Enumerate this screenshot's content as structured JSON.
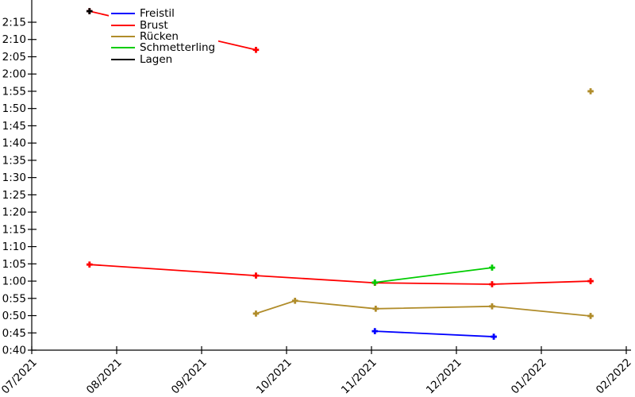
{
  "background_color": "#ffffff",
  "chart_data": {
    "type": "line",
    "title": "",
    "x_axis": {
      "unit": "date",
      "tick_labels": [
        "07/2021",
        "08/2021",
        "09/2021",
        "10/2021",
        "11/2021",
        "12/2021",
        "01/2022",
        "02/2022"
      ]
    },
    "y_axis": {
      "unit": "time (m:ss)",
      "min_seconds": 40,
      "max_seconds": 135,
      "tick_step_seconds": 5,
      "tick_labels": [
        "0:40",
        "0:45",
        "0:50",
        "0:55",
        "1:00",
        "1:05",
        "1:10",
        "1:15",
        "1:20",
        "1:25",
        "1:30",
        "1:35",
        "1:40",
        "1:45",
        "1:50",
        "1:55",
        "2:00",
        "2:05",
        "2:10",
        "2:15"
      ]
    },
    "legend": {
      "position": "top-left",
      "entries": [
        "Freistil",
        "Brust",
        "Rücken",
        "Schmetterling",
        "Lagen"
      ]
    },
    "series": [
      {
        "name": "Freistil",
        "color": "#0000ff",
        "marker": "plus",
        "segments": [
          [
            {
              "x_months_after_jul2021": 4.04,
              "seconds": 45.5,
              "time": "0:45"
            },
            {
              "x_months_after_jul2021": 5.44,
              "seconds": 43.9,
              "time": "0:44"
            }
          ]
        ]
      },
      {
        "name": "Brust",
        "color": "#ff0000",
        "marker": "plus",
        "segments": [
          [
            {
              "x_months_after_jul2021": 0.68,
              "seconds": 138.2,
              "time": "2:18"
            },
            {
              "x_months_after_jul2021": 2.64,
              "seconds": 127.0,
              "time": "2:07"
            }
          ],
          [
            {
              "x_months_after_jul2021": 0.68,
              "seconds": 64.8,
              "time": "1:05"
            },
            {
              "x_months_after_jul2021": 2.64,
              "seconds": 61.6,
              "time": "1:02"
            },
            {
              "x_months_after_jul2021": 4.04,
              "seconds": 59.5,
              "time": "1:00"
            },
            {
              "x_months_after_jul2021": 5.42,
              "seconds": 59.1,
              "time": "0:59"
            },
            {
              "x_months_after_jul2021": 6.58,
              "seconds": 60.0,
              "time": "1:00"
            }
          ]
        ]
      },
      {
        "name": "Rücken",
        "color": "#b08c2a",
        "marker": "plus",
        "segments": [
          [
            {
              "x_months_after_jul2021": 2.64,
              "seconds": 50.6,
              "time": "0:51"
            },
            {
              "x_months_after_jul2021": 3.1,
              "seconds": 54.3,
              "time": "0:54"
            },
            {
              "x_months_after_jul2021": 4.05,
              "seconds": 52.0,
              "time": "0:52"
            },
            {
              "x_months_after_jul2021": 5.42,
              "seconds": 52.7,
              "time": "0:53"
            },
            {
              "x_months_after_jul2021": 6.58,
              "seconds": 49.9,
              "time": "0:50"
            }
          ],
          [
            {
              "x_months_after_jul2021": 6.58,
              "seconds": 115.0,
              "time": "1:55"
            }
          ]
        ]
      },
      {
        "name": "Schmetterling",
        "color": "#00cc00",
        "marker": "plus",
        "segments": [
          [
            {
              "x_months_after_jul2021": 4.04,
              "seconds": 59.6,
              "time": "1:00"
            },
            {
              "x_months_after_jul2021": 5.42,
              "seconds": 63.9,
              "time": "1:04"
            }
          ]
        ]
      },
      {
        "name": "Lagen",
        "color": "#000000",
        "marker": "plus",
        "segments": [
          [
            {
              "x_months_after_jul2021": 0.68,
              "seconds": 138.2,
              "time": "2:18"
            }
          ]
        ]
      }
    ]
  }
}
